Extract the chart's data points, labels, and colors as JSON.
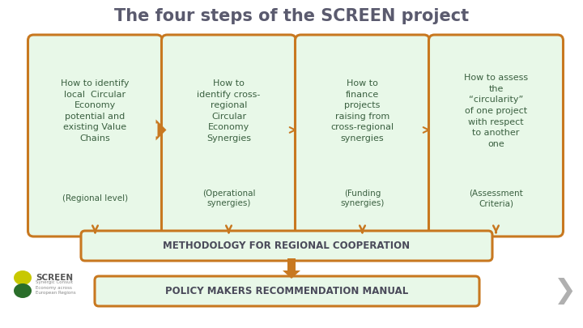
{
  "title": "The four steps of the SCREEN project",
  "title_fontsize": 15,
  "title_color": "#5a5a6e",
  "background_color": "#ffffff",
  "box_fill_color": "#e8f8e8",
  "box_edge_color": "#c87820",
  "box_edge_width": 2.2,
  "arrow_color": "#c87820",
  "method_fill_color": "#e8f8e8",
  "text_color": "#3a6040",
  "bold_text_color": "#4a4a5a",
  "boxes": [
    {
      "main_text": "How to identify\nlocal  Circular\nEconomy\npotential and\nexisting Value\nChains",
      "sub_text": "(Regional level)"
    },
    {
      "main_text": "How to\nidentify cross-\nregional\nCircular\nEconomy\nSynergies",
      "sub_text": "(Operational\nsynergies)"
    },
    {
      "main_text": "How to\nfinance\nprojects\nraising from\ncross-regional\nsynergies",
      "sub_text": "(Funding\nsynergies)"
    },
    {
      "main_text": "How to assess\nthe\n“circularity”\nof one project\nwith respect\nto another\none",
      "sub_text": "(Assessment\nCriteria)"
    }
  ],
  "methodology_text": "METHODOLOGY FOR REGIONAL COOPERATION",
  "policy_text": "POLICY MAKERS RECOMMENDATION MANUAL",
  "font_size_box_main": 8.0,
  "font_size_box_sub": 7.5,
  "font_size_method": 8.5,
  "chevron_color": "#b0b0b0"
}
